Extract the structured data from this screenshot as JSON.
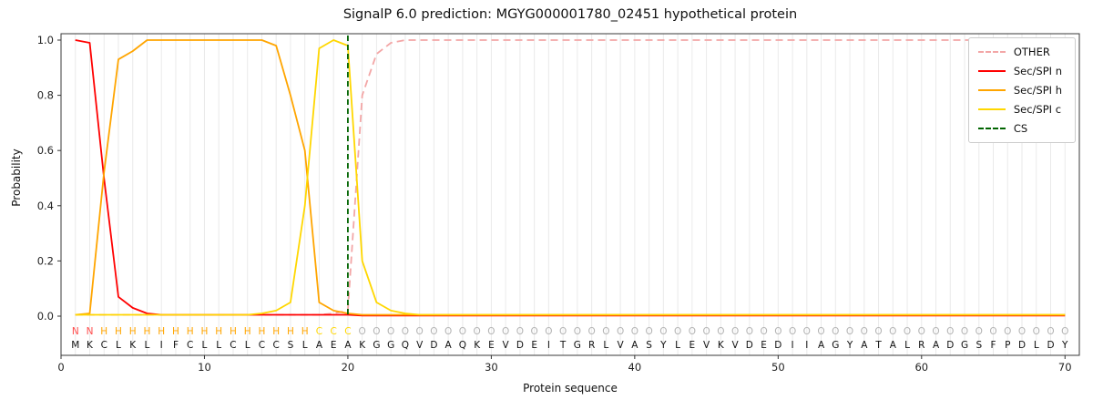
{
  "title": "SignalP 6.0 prediction: MGYG000001780_02451 hypothetical protein",
  "chart_data": {
    "type": "line",
    "title": "SignalP 6.0 prediction: MGYG000001780_02451 hypothetical protein",
    "xlabel": "Protein sequence",
    "ylabel": "Probability",
    "xlim": [
      0,
      71
    ],
    "ylim": [
      0.0,
      1.0
    ],
    "xticks": [
      0,
      10,
      20,
      30,
      40,
      50,
      60,
      70
    ],
    "yticks": [
      0.0,
      0.2,
      0.4,
      0.6,
      0.8,
      1.0
    ],
    "grid": "vertical line per residue, light gray",
    "legend_position": "upper right",
    "series": [
      {
        "name": "OTHER",
        "color": "#f3a6a6",
        "dash": true,
        "values": [
          0.005,
          0.005,
          0.005,
          0.005,
          0.005,
          0.005,
          0.005,
          0.005,
          0.005,
          0.005,
          0.005,
          0.005,
          0.005,
          0.005,
          0.005,
          0.005,
          0.005,
          0.005,
          0.01,
          0.02,
          0.8,
          0.95,
          0.99,
          1.0,
          1.0,
          1.0,
          1.0,
          1.0,
          1.0,
          1.0,
          1.0,
          1.0,
          1.0,
          1.0,
          1.0,
          1.0,
          1.0,
          1.0,
          1.0,
          1.0,
          1.0,
          1.0,
          1.0,
          1.0,
          1.0,
          1.0,
          1.0,
          1.0,
          1.0,
          1.0,
          1.0,
          1.0,
          1.0,
          1.0,
          1.0,
          1.0,
          1.0,
          1.0,
          1.0,
          1.0,
          1.0,
          1.0,
          1.0,
          1.0,
          1.0,
          1.0,
          1.0,
          1.0,
          1.0,
          1.0
        ]
      },
      {
        "name": "Sec/SPI n",
        "color": "#ff0000",
        "dash": false,
        "values": [
          1.0,
          0.99,
          0.5,
          0.07,
          0.03,
          0.01,
          0.005,
          0.005,
          0.005,
          0.005,
          0.005,
          0.005,
          0.005,
          0.005,
          0.005,
          0.005,
          0.005,
          0.005,
          0.005,
          0.005,
          0.002,
          0.002,
          0.002,
          0.002,
          0.002,
          0.002,
          0.002,
          0.002,
          0.002,
          0.002,
          0.002,
          0.002,
          0.002,
          0.002,
          0.002,
          0.002,
          0.002,
          0.002,
          0.002,
          0.002,
          0.002,
          0.002,
          0.002,
          0.002,
          0.002,
          0.002,
          0.002,
          0.002,
          0.002,
          0.002,
          0.002,
          0.002,
          0.002,
          0.002,
          0.002,
          0.002,
          0.002,
          0.002,
          0.002,
          0.002,
          0.002,
          0.002,
          0.002,
          0.002,
          0.002,
          0.002,
          0.002,
          0.002,
          0.002,
          0.002
        ]
      },
      {
        "name": "Sec/SPI h",
        "color": "#ffa500",
        "dash": false,
        "values": [
          0.005,
          0.01,
          0.52,
          0.93,
          0.96,
          1.0,
          1.0,
          1.0,
          1.0,
          1.0,
          1.0,
          1.0,
          1.0,
          1.0,
          0.98,
          0.8,
          0.6,
          0.05,
          0.02,
          0.01,
          0.005,
          0.005,
          0.005,
          0.005,
          0.005,
          0.005,
          0.005,
          0.005,
          0.005,
          0.005,
          0.005,
          0.005,
          0.005,
          0.005,
          0.005,
          0.005,
          0.005,
          0.005,
          0.005,
          0.005,
          0.005,
          0.005,
          0.005,
          0.005,
          0.005,
          0.005,
          0.005,
          0.005,
          0.005,
          0.005,
          0.005,
          0.005,
          0.005,
          0.005,
          0.005,
          0.005,
          0.005,
          0.005,
          0.005,
          0.005,
          0.005,
          0.005,
          0.005,
          0.005,
          0.005,
          0.005,
          0.005,
          0.005,
          0.005,
          0.005
        ]
      },
      {
        "name": "Sec/SPI c",
        "color": "#ffd700",
        "dash": false,
        "values": [
          0.005,
          0.005,
          0.005,
          0.005,
          0.005,
          0.005,
          0.005,
          0.005,
          0.005,
          0.005,
          0.005,
          0.005,
          0.005,
          0.01,
          0.02,
          0.05,
          0.4,
          0.97,
          1.0,
          0.98,
          0.2,
          0.05,
          0.02,
          0.01,
          0.005,
          0.005,
          0.005,
          0.005,
          0.005,
          0.005,
          0.005,
          0.005,
          0.005,
          0.005,
          0.005,
          0.005,
          0.005,
          0.005,
          0.005,
          0.005,
          0.005,
          0.005,
          0.005,
          0.005,
          0.005,
          0.005,
          0.005,
          0.005,
          0.005,
          0.005,
          0.005,
          0.005,
          0.005,
          0.005,
          0.005,
          0.005,
          0.005,
          0.005,
          0.005,
          0.005,
          0.005,
          0.005,
          0.005,
          0.005,
          0.005,
          0.005,
          0.005,
          0.005,
          0.005,
          0.005
        ]
      }
    ],
    "cs_marker": {
      "name": "CS",
      "x": 20,
      "color": "#006400",
      "dash": true
    },
    "sequence": "MKCLKLIFCLLCLCCSLAEAKGGQVDAQKEVDEITGRLVASYLEVKVDEDIIAGYATALRADGSFPDLDY",
    "region_labels": "NNHHHHHHHHHHHHHHHCCCOOOOOOOOOOOOOOOOOOOOOOOOOOOOOOOOOOOOOOOOOOOOOOOOOO",
    "region_colors": {
      "N": "#ff4d4d",
      "H": "#ffa500",
      "C": "#ffd700",
      "O": "#b3b3b3"
    }
  }
}
